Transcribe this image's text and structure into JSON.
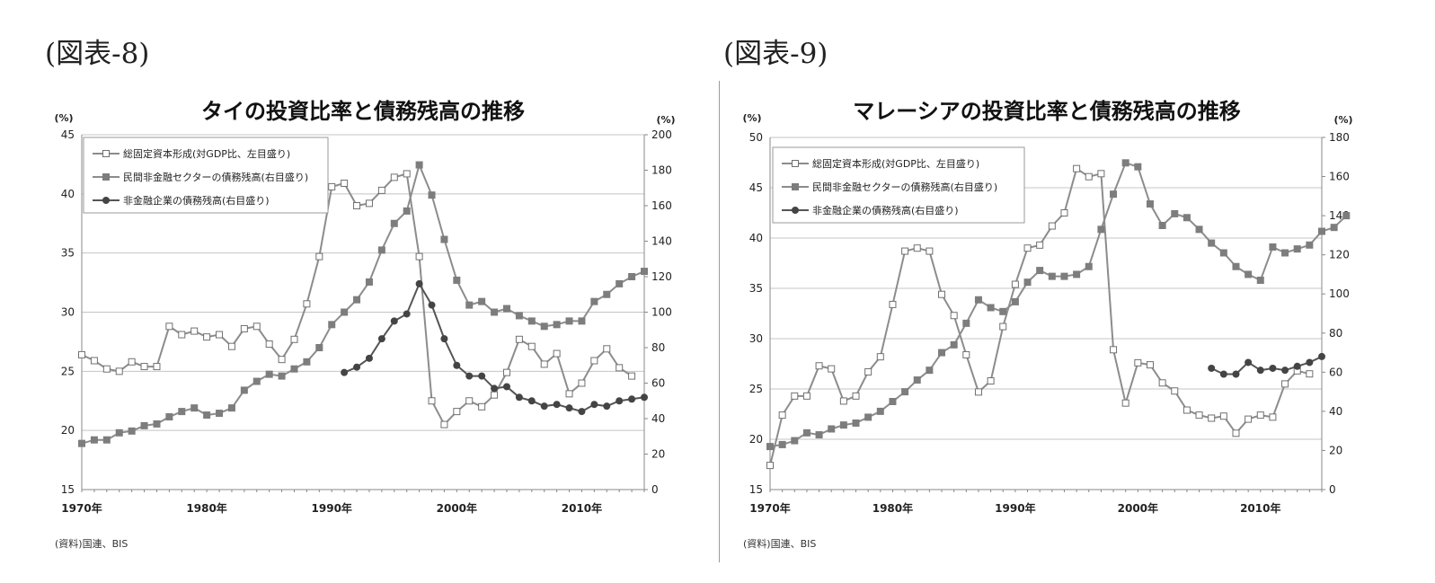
{
  "figures": [
    {
      "label": "(図表-8)"
    },
    {
      "label": "(図表-9)"
    }
  ],
  "chart_data": [
    {
      "type": "line",
      "title": "タイの投資比率と債務残高の推移",
      "left_axis_unit": "(%)",
      "right_axis_unit": "(%)",
      "left_ylim": [
        15,
        45
      ],
      "left_ticks": [
        15,
        20,
        25,
        30,
        35,
        40,
        45
      ],
      "right_ylim": [
        0,
        200
      ],
      "right_ticks": [
        0,
        20,
        40,
        60,
        80,
        100,
        120,
        140,
        160,
        180,
        200
      ],
      "xlim": [
        1970,
        2015
      ],
      "x_tick_values": [
        1970,
        1980,
        1990,
        2000,
        2010
      ],
      "x_tick_labels": [
        "1970年",
        "1980年",
        "1990年",
        "2000年",
        "2010年"
      ],
      "grid": true,
      "legend_position": "top-left",
      "source": "(資料)国連、BIS",
      "series": [
        {
          "name": "総固定資本形成(対GDP比、左目盛り)",
          "axis": "left",
          "marker": "open-square",
          "color": "#8c8c8c",
          "x_start": 1970,
          "values": [
            26.4,
            25.9,
            25.2,
            25.0,
            25.8,
            25.4,
            25.4,
            28.8,
            28.1,
            28.4,
            27.9,
            28.1,
            27.1,
            28.6,
            28.8,
            27.3,
            26.0,
            27.7,
            30.7,
            34.7,
            40.6,
            40.9,
            39.0,
            39.2,
            40.3,
            41.4,
            41.7,
            34.7,
            22.5,
            20.5,
            21.6,
            22.5,
            22.0,
            23.0,
            24.9,
            27.7,
            27.1,
            25.6,
            26.5,
            23.1,
            24.0,
            25.9,
            26.9,
            25.3,
            24.6
          ]
        },
        {
          "name": "民間非金融セクターの債務残高(右目盛り)",
          "axis": "right",
          "marker": "filled-square",
          "color": "#8c8c8c",
          "x_start": 1970,
          "values": [
            26,
            28,
            28,
            32,
            33,
            36,
            37,
            41,
            44,
            46,
            42,
            43,
            46,
            56,
            61,
            65,
            64,
            68,
            72,
            80,
            93,
            100,
            107,
            117,
            135,
            150,
            157,
            183,
            166,
            141,
            118,
            104,
            106,
            100,
            102,
            98,
            95,
            92,
            93,
            95,
            95,
            106,
            110,
            116,
            120,
            123
          ]
        },
        {
          "name": "非金融企業の債務残高(右目盛り)",
          "axis": "right",
          "marker": "filled-circle",
          "color": "#555555",
          "x_start": 1991,
          "values": [
            66,
            69,
            74,
            85,
            95,
            99,
            116,
            104,
            85,
            70,
            64,
            64,
            57,
            58,
            52,
            50,
            47,
            48,
            46,
            44,
            48,
            47,
            50,
            51,
            52
          ]
        }
      ]
    },
    {
      "type": "line",
      "title": "マレーシアの投資比率と債務残高の推移",
      "left_axis_unit": "(%)",
      "right_axis_unit": "(%)",
      "left_ylim": [
        15,
        50
      ],
      "left_ticks": [
        15,
        20,
        25,
        30,
        35,
        40,
        45,
        50
      ],
      "right_ylim": [
        0,
        180
      ],
      "right_ticks": [
        0,
        20,
        40,
        60,
        80,
        100,
        120,
        140,
        160,
        180
      ],
      "xlim": [
        1970,
        2015
      ],
      "x_tick_values": [
        1970,
        1980,
        1990,
        2000,
        2010
      ],
      "x_tick_labels": [
        "1970年",
        "1980年",
        "1990年",
        "2000年",
        "2010年"
      ],
      "grid": true,
      "legend_position": "top-left",
      "source": "(資料)国連、BIS",
      "series": [
        {
          "name": "総固定資本形成(対GDP比、左目盛り)",
          "axis": "left",
          "marker": "open-square",
          "color": "#8c8c8c",
          "x_start": 1970,
          "values": [
            17.4,
            22.4,
            24.3,
            24.3,
            27.3,
            27.0,
            23.8,
            24.3,
            26.7,
            28.2,
            33.4,
            38.7,
            39.0,
            38.7,
            34.4,
            32.3,
            28.4,
            24.7,
            25.8,
            31.2,
            35.4,
            39.0,
            39.3,
            41.2,
            42.5,
            46.9,
            46.1,
            46.4,
            28.9,
            23.6,
            27.6,
            27.4,
            25.6,
            24.8,
            22.9,
            22.4,
            22.1,
            22.3,
            20.6,
            22.0,
            22.4,
            22.2,
            25.5,
            26.8,
            26.5
          ]
        },
        {
          "name": "民間非金融セクターの債務残高(右目盛り)",
          "axis": "right",
          "marker": "filled-square",
          "color": "#8c8c8c",
          "x_start": 1970,
          "values": [
            22,
            23,
            25,
            29,
            28,
            31,
            33,
            34,
            37,
            40,
            45,
            50,
            56,
            61,
            70,
            74,
            85,
            97,
            93,
            91,
            96,
            106,
            112,
            109,
            109,
            110,
            114,
            133,
            151,
            167,
            165,
            146,
            135,
            141,
            139,
            133,
            126,
            121,
            114,
            110,
            107,
            124,
            121,
            123,
            125,
            132,
            134,
            140
          ]
        },
        {
          "name": "非金融企業の債務残高(右目盛り)",
          "axis": "right",
          "marker": "filled-circle",
          "color": "#555555",
          "x_start": 2006,
          "values": [
            62,
            59,
            59,
            65,
            61,
            62,
            61,
            63,
            65,
            68
          ]
        }
      ]
    }
  ]
}
